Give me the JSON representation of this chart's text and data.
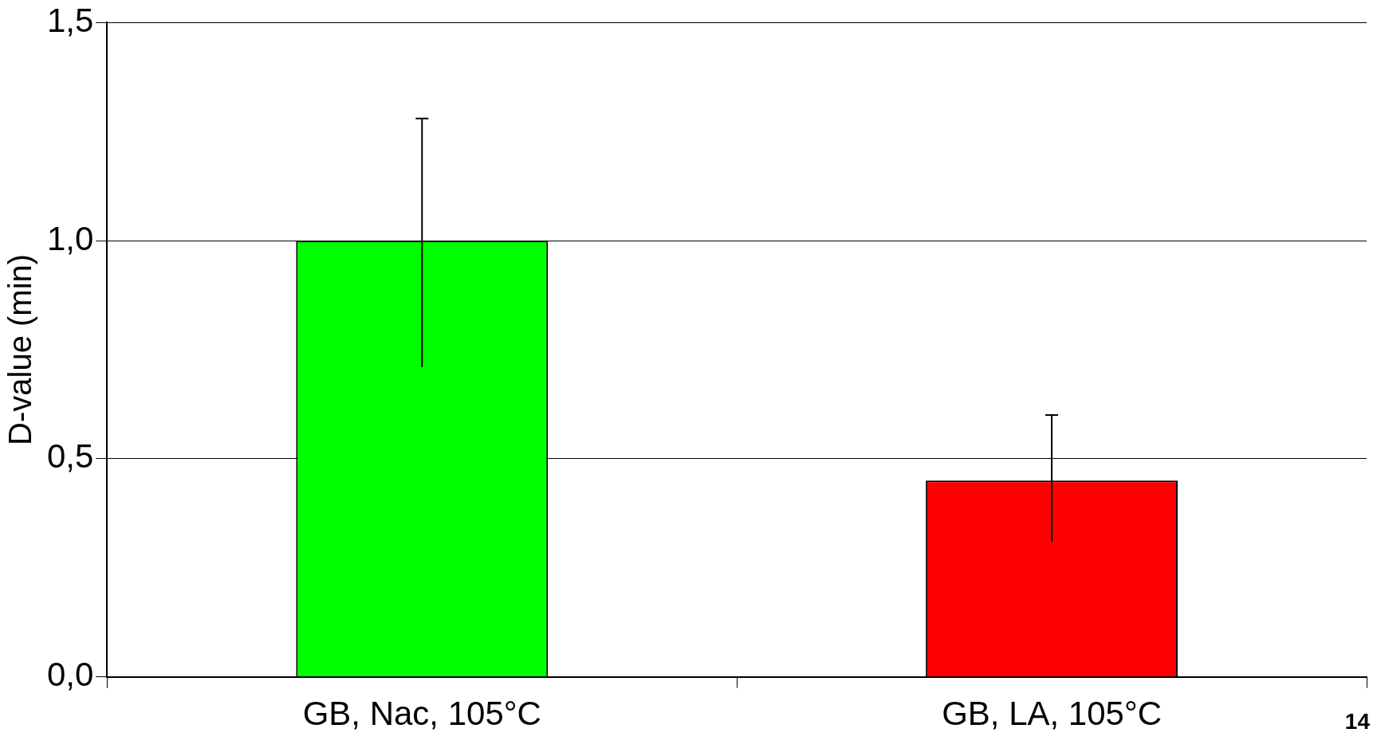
{
  "chart_data": {
    "type": "bar",
    "ylabel": "D-value (min)",
    "categories": [
      "GB, Nac, 105°C",
      "GB, LA, 105°C"
    ],
    "values": [
      1.0,
      0.45
    ],
    "colors": [
      "#00ff00",
      "#ff0000"
    ],
    "errors": [
      [
        0.71,
        1.28
      ],
      [
        0.31,
        0.6
      ]
    ],
    "ylim": [
      0,
      1.5
    ],
    "yticks": [
      {
        "value": 0,
        "label": "0,0"
      },
      {
        "value": 0.5,
        "label": "0,5"
      },
      {
        "value": 1,
        "label": "1,0"
      },
      {
        "value": 1.5,
        "label": "1,5"
      }
    ],
    "grid": "y",
    "legend": false,
    "annotations": [
      "14"
    ]
  }
}
